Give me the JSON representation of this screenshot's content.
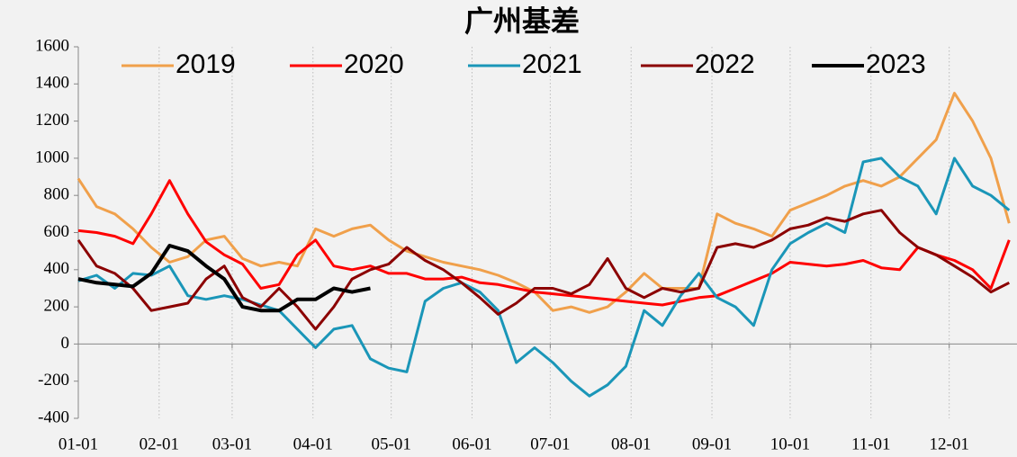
{
  "chart_data": {
    "type": "line",
    "title": "广州基差",
    "x": [
      "01-01",
      "01-08",
      "01-15",
      "01-22",
      "01-29",
      "02-05",
      "02-12",
      "02-19",
      "02-26",
      "03-05",
      "03-12",
      "03-19",
      "03-26",
      "04-02",
      "04-09",
      "04-16",
      "04-23",
      "04-30",
      "05-07",
      "05-14",
      "05-21",
      "05-28",
      "06-04",
      "06-11",
      "06-18",
      "06-25",
      "07-02",
      "07-09",
      "07-16",
      "07-23",
      "07-30",
      "08-06",
      "08-13",
      "08-20",
      "08-27",
      "09-03",
      "09-10",
      "09-17",
      "09-24",
      "10-01",
      "10-08",
      "10-15",
      "10-22",
      "10-29",
      "11-05",
      "11-12",
      "11-19",
      "11-26",
      "12-03",
      "12-10",
      "12-17",
      "12-24"
    ],
    "series": [
      {
        "name": "2019",
        "color": "#f0a04b",
        "width": 3,
        "values": [
          890,
          740,
          700,
          620,
          520,
          440,
          470,
          560,
          580,
          460,
          420,
          440,
          420,
          620,
          580,
          620,
          640,
          560,
          500,
          470,
          440,
          420,
          400,
          370,
          330,
          280,
          180,
          200,
          170,
          200,
          280,
          380,
          300,
          300,
          300,
          700,
          650,
          620,
          580,
          720,
          760,
          800,
          850,
          880,
          850,
          900,
          1000,
          1100,
          1350,
          1200,
          1000,
          650
        ]
      },
      {
        "name": "2020",
        "color": "#ff0000",
        "width": 3,
        "values": [
          610,
          600,
          580,
          540,
          700,
          880,
          700,
          550,
          480,
          430,
          300,
          320,
          480,
          560,
          420,
          400,
          420,
          380,
          380,
          350,
          350,
          360,
          330,
          320,
          300,
          280,
          270,
          260,
          250,
          240,
          230,
          220,
          210,
          230,
          250,
          260,
          300,
          340,
          380,
          440,
          430,
          420,
          430,
          450,
          410,
          400,
          520,
          480,
          450,
          400,
          300,
          560
        ]
      },
      {
        "name": "2021",
        "color": "#1a96b8",
        "width": 3,
        "values": [
          340,
          370,
          300,
          380,
          370,
          420,
          260,
          240,
          260,
          240,
          210,
          180,
          80,
          -20,
          80,
          100,
          -80,
          -130,
          -150,
          230,
          300,
          330,
          280,
          180,
          -100,
          -20,
          -100,
          -200,
          -280,
          -220,
          -120,
          180,
          100,
          260,
          380,
          250,
          200,
          100,
          400,
          540,
          600,
          650,
          600,
          980,
          1000,
          900,
          850,
          700,
          1000,
          850,
          800,
          720
        ]
      },
      {
        "name": "2022",
        "color": "#8b0000",
        "width": 3,
        "values": [
          560,
          420,
          380,
          300,
          180,
          200,
          220,
          350,
          420,
          250,
          200,
          300,
          200,
          80,
          200,
          350,
          400,
          430,
          520,
          450,
          400,
          330,
          250,
          160,
          220,
          300,
          300,
          270,
          320,
          460,
          300,
          250,
          300,
          280,
          300,
          520,
          540,
          520,
          560,
          620,
          640,
          680,
          660,
          700,
          720,
          600,
          520,
          480,
          420,
          360,
          280,
          330
        ]
      },
      {
        "name": "2023",
        "color": "#000000",
        "width": 4,
        "values": [
          350,
          330,
          320,
          310,
          380,
          530,
          500,
          420,
          350,
          200,
          180,
          180,
          240,
          240,
          300,
          280,
          300,
          null,
          null,
          null,
          null,
          null,
          null,
          null,
          null,
          null,
          null,
          null,
          null,
          null,
          null,
          null,
          null,
          null,
          null,
          null,
          null,
          null,
          null,
          null,
          null,
          null,
          null,
          null,
          null,
          null,
          null,
          null,
          null,
          null,
          null,
          null
        ]
      }
    ],
    "xlim": [
      "01-01",
      "12-27"
    ],
    "xticks": [
      "01-01",
      "02-01",
      "03-01",
      "04-01",
      "05-01",
      "06-01",
      "07-01",
      "08-01",
      "09-01",
      "10-01",
      "11-01",
      "12-01"
    ],
    "ylim": [
      -400,
      1600
    ],
    "yticks": [
      -400,
      -200,
      0,
      200,
      400,
      600,
      800,
      1000,
      1200,
      1400,
      1600
    ],
    "grid": "x",
    "legend": "top"
  }
}
